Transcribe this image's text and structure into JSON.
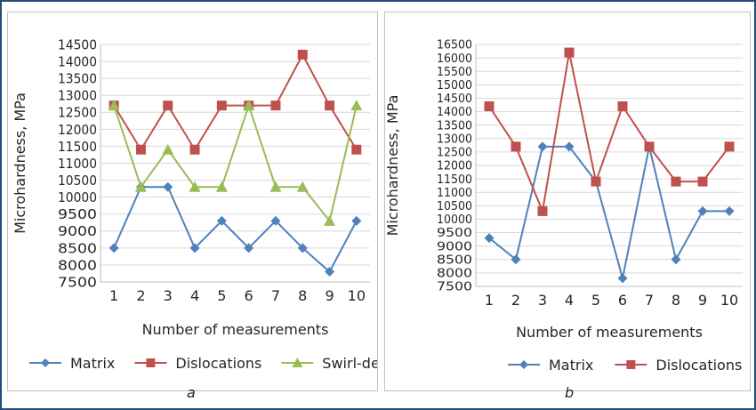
{
  "chart_data": [
    {
      "type": "line",
      "panel_label": "a",
      "xlabel": "Number of measurements",
      "ylabel": "Microhardness, MPa",
      "categories": [
        "1",
        "2",
        "3",
        "4",
        "5",
        "6",
        "7",
        "8",
        "9",
        "10"
      ],
      "ylim": [
        7500,
        14500
      ],
      "ytick_step": 500,
      "grid": "horizontal",
      "legend_position": "bottom",
      "series": [
        {
          "name": "Matrix",
          "color": "#4f81bd",
          "marker": "diamond",
          "values": [
            8500,
            10300,
            10300,
            8500,
            9300,
            8500,
            9300,
            8500,
            7800,
            9300
          ]
        },
        {
          "name": "Dislocations",
          "color": "#c0504d",
          "marker": "square",
          "values": [
            12700,
            11400,
            12700,
            11400,
            12700,
            12700,
            12700,
            14200,
            12700,
            11400
          ]
        },
        {
          "name": "Swirl-defects",
          "color": "#9bbb59",
          "marker": "triangle",
          "values": [
            12700,
            10300,
            11400,
            10300,
            10300,
            12700,
            10300,
            10300,
            9300,
            12700
          ]
        }
      ]
    },
    {
      "type": "line",
      "panel_label": "b",
      "xlabel": "Number of measurements",
      "ylabel": "Microhardness, MPa",
      "categories": [
        "1",
        "2",
        "3",
        "4",
        "5",
        "6",
        "7",
        "8",
        "9",
        "10"
      ],
      "ylim": [
        7500,
        16500
      ],
      "ytick_step": 500,
      "grid": "horizontal",
      "legend_position": "bottom",
      "series": [
        {
          "name": "Matrix",
          "color": "#4f81bd",
          "marker": "diamond",
          "values": [
            9300,
            8500,
            12700,
            12700,
            11400,
            7800,
            12700,
            8500,
            10300,
            10300
          ]
        },
        {
          "name": "Dislocations",
          "color": "#c0504d",
          "marker": "square",
          "values": [
            14200,
            12700,
            10300,
            16200,
            11400,
            14200,
            12700,
            11400,
            11400,
            12700
          ]
        }
      ]
    }
  ]
}
